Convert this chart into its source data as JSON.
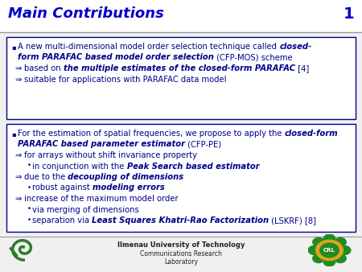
{
  "title": "Main Contributions",
  "slide_number": "1",
  "title_color": "#0000CC",
  "title_underline_color": "#999999",
  "background_color": "#FFFFFF",
  "box_border_color": "#00008B",
  "box_bg_color": "#FFFFFF",
  "text_color": "#00008B",
  "bold_italic_color": "#00008B",
  "footer_text_1": "Ilmenau University of Technology",
  "footer_text_2": "Communications Research",
  "footer_text_3": "Laboratory",
  "bg_gray": "#E8E8E8"
}
